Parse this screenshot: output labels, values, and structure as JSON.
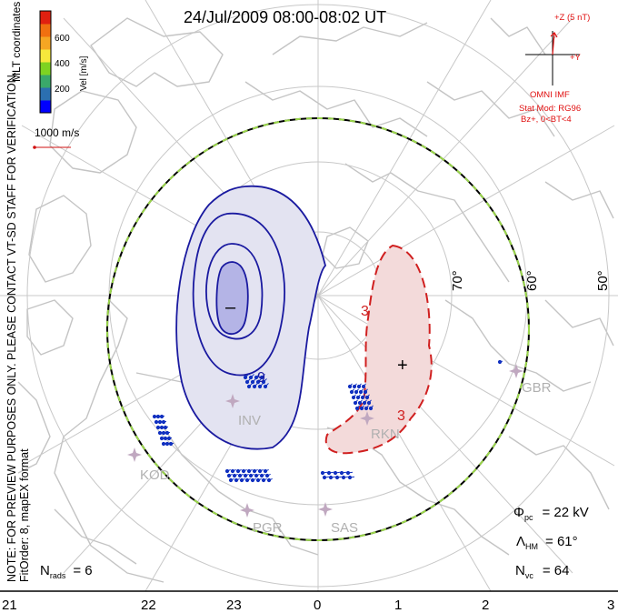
{
  "title": "24/Jul/2009  08:00-08:02  UT",
  "coordinates_label": "MLT coordinates",
  "colorbar": {
    "title": "Vel [m/s]",
    "ticks": [
      "600",
      "400",
      "200"
    ],
    "colors": [
      "#0000ff",
      "#2b6fb0",
      "#3aa86a",
      "#7ed321",
      "#f6e83c",
      "#f5a623",
      "#f07010",
      "#e02010"
    ]
  },
  "velocity_scale": "1000 m/s",
  "watermark": "NOTE: FOR PREVIEW PURPOSES ONLY. PLEASE CONTACT VT-SD STAFF FOR VERIFICATION.",
  "fit_order": "FitOrder: 8, mapEX format",
  "imf": {
    "z_label": "+Z (5 nT)",
    "y_label": "+Y",
    "source": "OMNI IMF",
    "stat_mod": "Stat Mod: RG96",
    "condition": "Bz+, 0<BT<4"
  },
  "latitude_labels": [
    "70°",
    "60°",
    "50°"
  ],
  "mlt_labels": [
    "21",
    "22",
    "23",
    "0",
    "1",
    "2",
    "3"
  ],
  "stations": [
    "INV",
    "RKN",
    "KOD",
    "PGR",
    "SAS",
    "GBR"
  ],
  "potential_labels": {
    "minimum": "–",
    "maximum": "+",
    "contour_negative": "9",
    "contour_positive": "3"
  },
  "stats": {
    "phi_symbol": "Φ",
    "phi_sub": "pc",
    "phi_value": "= 22 kV",
    "lambda_symbol": "Λ",
    "lambda_sub": "HM",
    "lambda_value": "= 61°",
    "nvc_symbol": "N",
    "nvc_sub": "vc",
    "nvc_value": "= 64",
    "nrads_symbol": "N",
    "nrads_sub": "rads",
    "nrads_value": "= 6"
  },
  "colors": {
    "negative_fill": "#e3e3f1",
    "negative_core": "#b4b4e6",
    "negative_line": "#1a1aa0",
    "positive_fill": "#f3dada",
    "positive_line": "#d02020",
    "coast": "#c4c4c4",
    "grid": "#c8c8c8",
    "boundary_green": "#9ad64a",
    "vector_blue": "#1030c0",
    "imf_red": "#e01010"
  }
}
